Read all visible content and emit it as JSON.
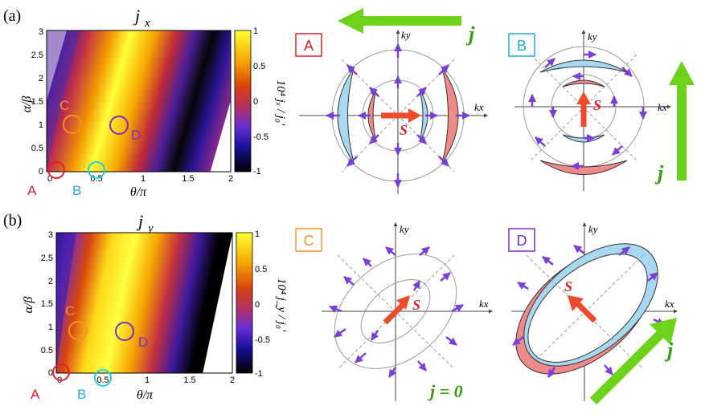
{
  "panels": {
    "a": {
      "tag": "(a)",
      "title": "j",
      "title_sub": "x",
      "cbar_label": "10⁴ jₓ / j₀'"
    },
    "b": {
      "tag": "(b)",
      "title": "j",
      "title_sub": "y",
      "cbar_label": "10⁴ j_y / j₀'"
    }
  },
  "axes": {
    "xlabel": "θ/π",
    "ylabel": "α/β",
    "xticks": [
      "0",
      "0.5",
      "1",
      "1.5",
      "2"
    ],
    "yticks": [
      "0",
      "0.5",
      "1",
      "1.5",
      "2",
      "2.5",
      "3"
    ],
    "cbar_ticks": [
      "1",
      "0.5",
      "0",
      "-0.5",
      "-1"
    ]
  },
  "markers": {
    "A": {
      "label": "A",
      "color": "#e01f26"
    },
    "B": {
      "label": "B",
      "color": "#25a9e0"
    },
    "C": {
      "label": "C",
      "color": "#f7941d"
    },
    "D": {
      "label": "D",
      "color": "#7b2fbe"
    }
  },
  "diagrams": {
    "A": {
      "box": "A",
      "kx": "kx",
      "ky": "ky",
      "s": "S"
    },
    "B": {
      "box": "B",
      "kx": "kx",
      "ky": "ky",
      "s": "S"
    },
    "C": {
      "box": "C",
      "kx": "kx",
      "ky": "ky",
      "s": "S",
      "j_text": "j = 0"
    },
    "D": {
      "box": "D",
      "kx": "kx",
      "ky": "ky",
      "s": "S"
    }
  },
  "j_label": "j",
  "colors": {
    "pink": "#f08a8a",
    "light_blue": "#a8d8ef",
    "arrow_purple": "#7a3fd6",
    "s_arrow": "#f04a2c",
    "j_arrow": "#6cd21a"
  }
}
